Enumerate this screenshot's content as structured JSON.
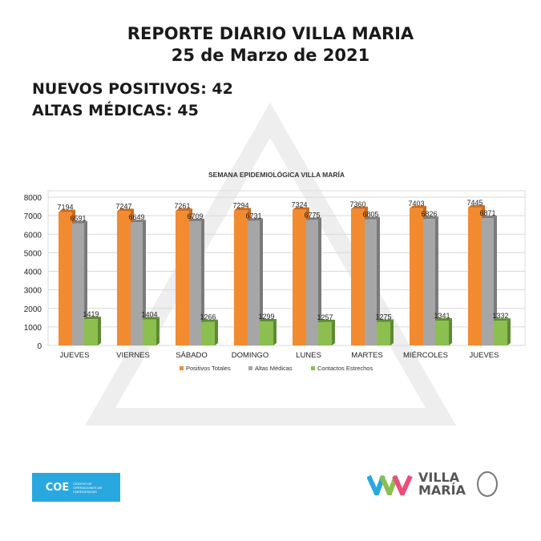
{
  "header": {
    "title": "REPORTE DIARIO VILLA MARIA",
    "date": "25 de Marzo de 2021"
  },
  "stats": {
    "nuevos_positivos": "NUEVOS POSITIVOS: 42",
    "altas_medicas": "ALTAS MÉDICAS: 45"
  },
  "chart_data": {
    "type": "bar",
    "title": "SEMANA EPIDEMIOLÓGICA VILLA MARÍA",
    "categories": [
      "JUEVES",
      "VIERNES",
      "SÁBADO",
      "DOMINGO",
      "LUNES",
      "MARTES",
      "MIÉRCOLES",
      "JUEVES"
    ],
    "series": [
      {
        "name": "Positivos Totales",
        "color": "#f28b30",
        "values": [
          7194,
          7247,
          7261,
          7294,
          7324,
          7360,
          7403,
          7445
        ]
      },
      {
        "name": "Altas Médicas",
        "color": "#a6a6a6",
        "values": [
          6591,
          6649,
          6709,
          6731,
          6775,
          6805,
          6826,
          6871
        ]
      },
      {
        "name": "Contactos Estrechos",
        "color": "#8cbf4f",
        "values": [
          1419,
          1404,
          1266,
          1299,
          1257,
          1275,
          1341,
          1332
        ]
      }
    ],
    "yticks": [
      0,
      1000,
      2000,
      3000,
      4000,
      5000,
      6000,
      7000,
      8000
    ],
    "ylim": [
      0,
      8000
    ],
    "grid": true,
    "legend": "bottom"
  },
  "footer": {
    "coe_logo": "COE",
    "coe_text": "CENTRO DE OPERACIONES DE EMERGENCIAS",
    "vm_logo_line1": "VILLA",
    "vm_logo_line2": "MARÍA"
  }
}
